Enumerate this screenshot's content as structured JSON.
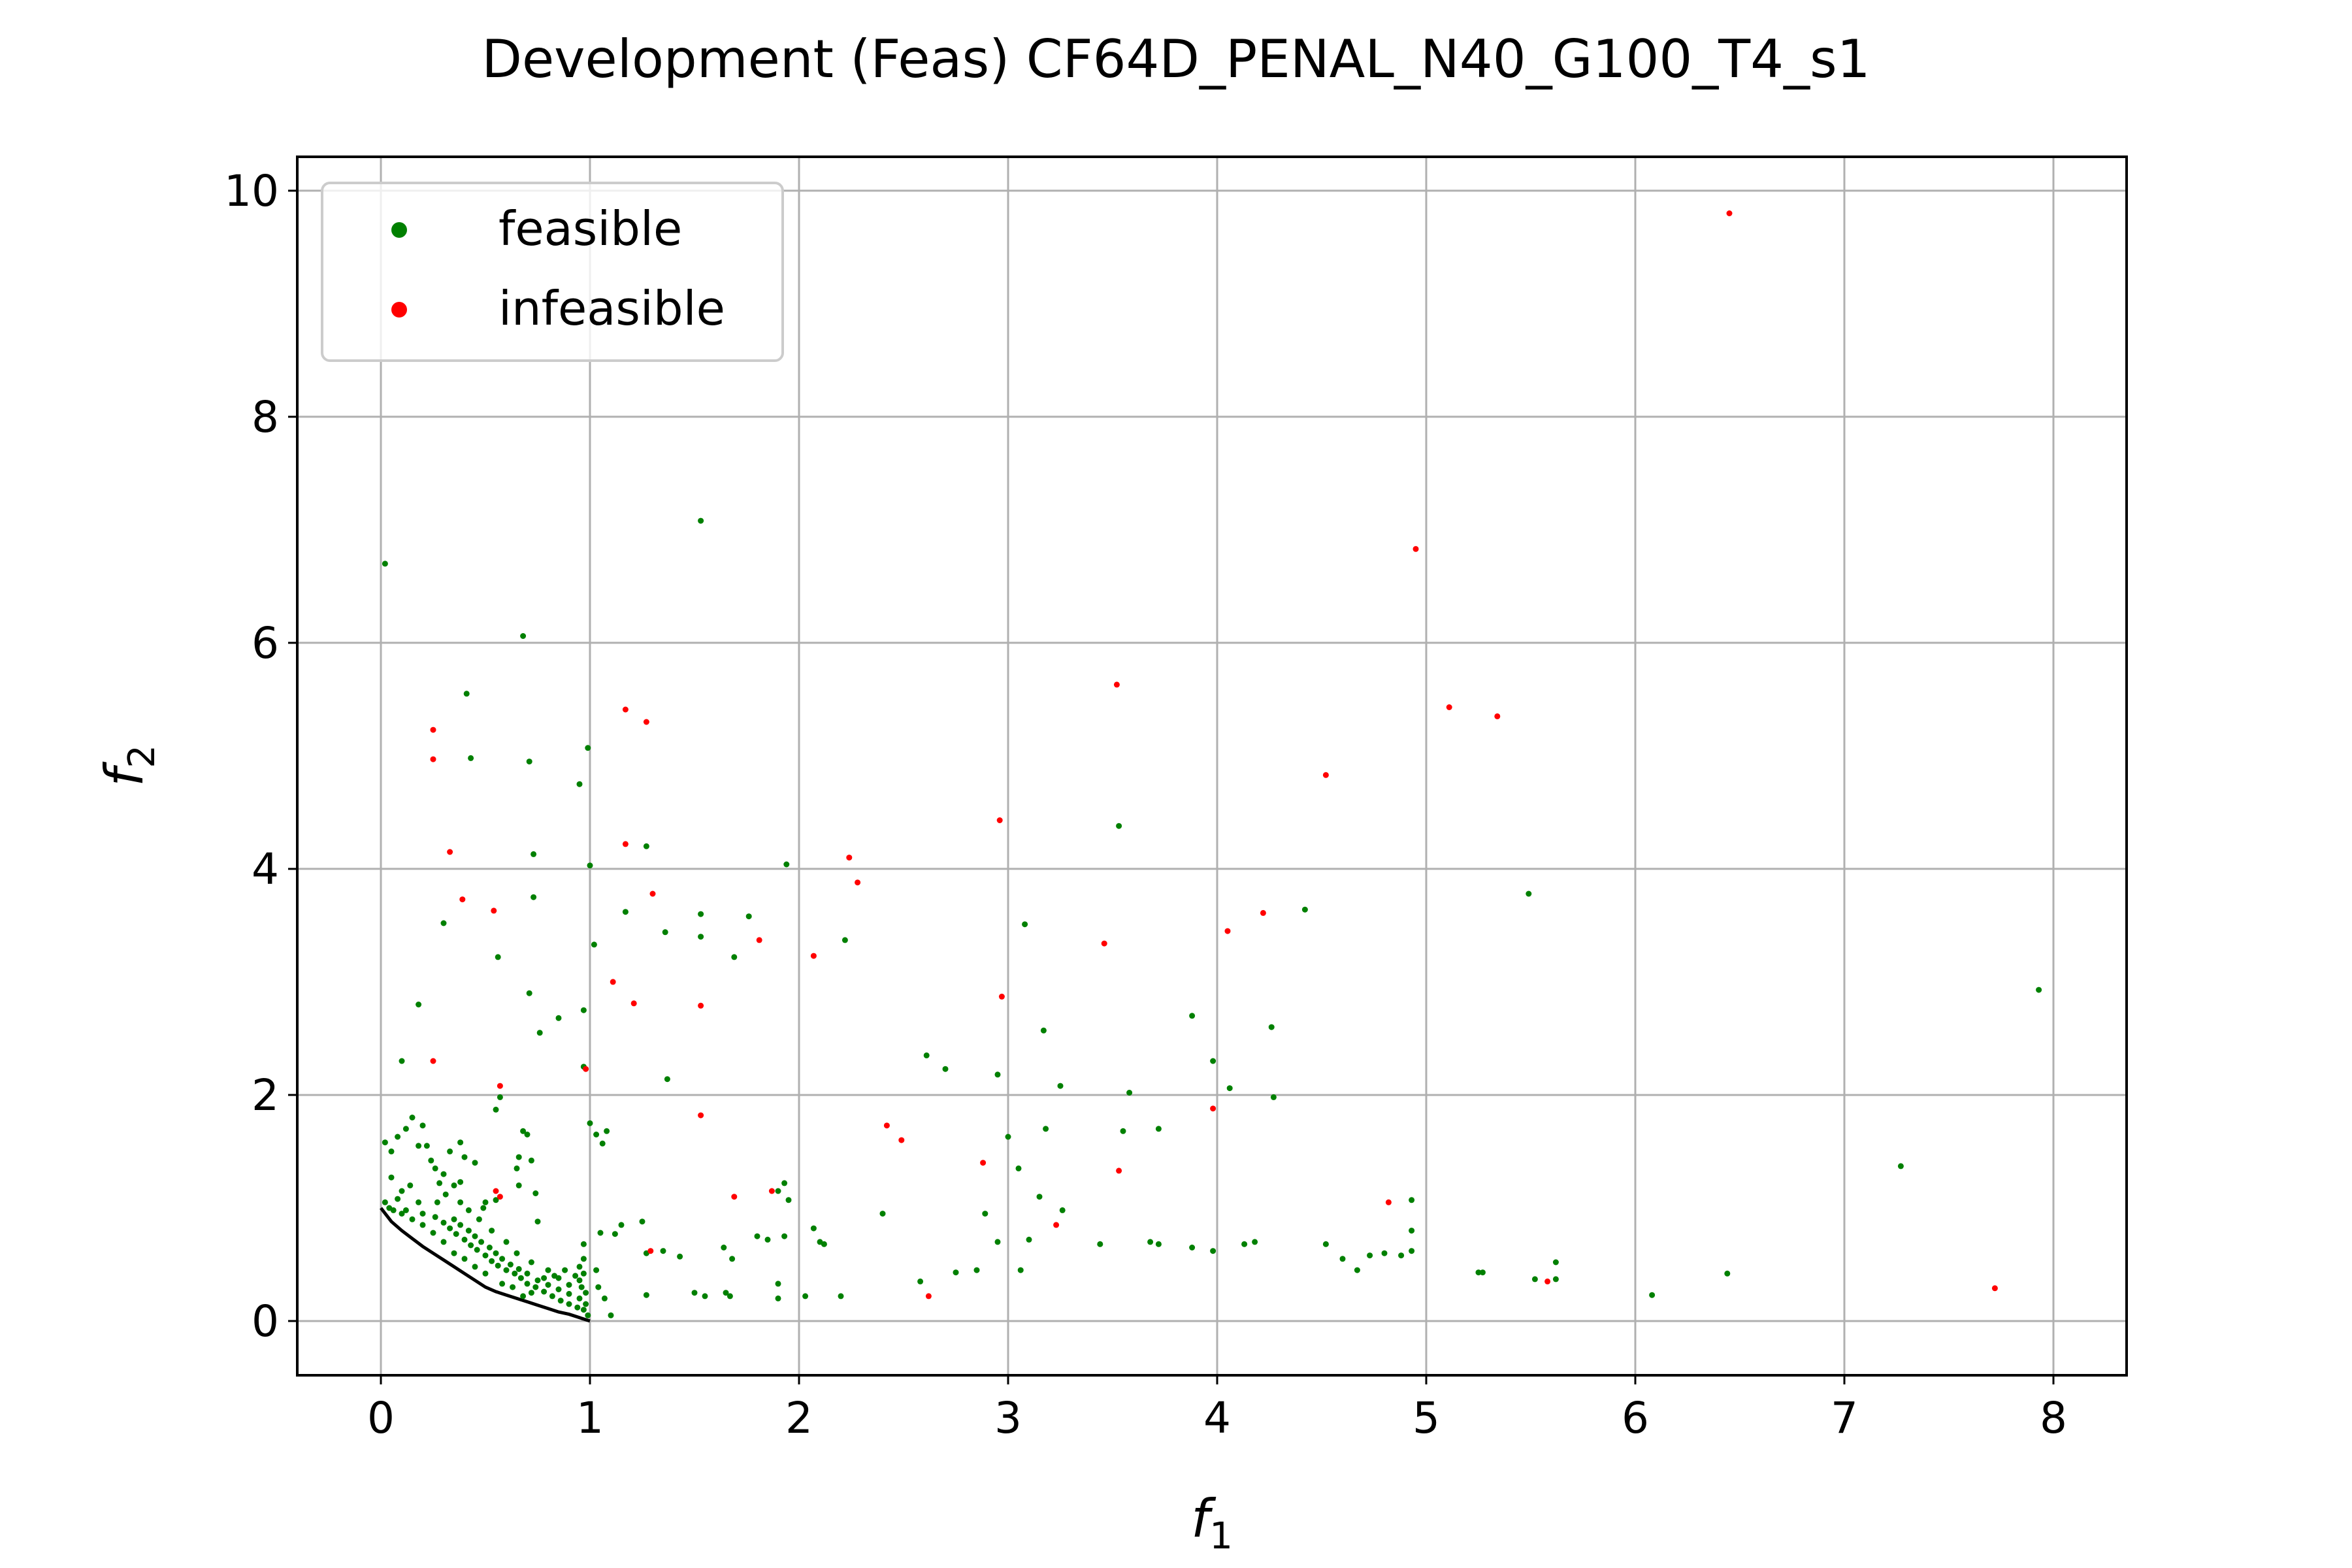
{
  "chart_data": {
    "type": "scatter",
    "title": "Development (Feas) CF64D_PENAL_N40_G100_T4_s1",
    "xlabel": {
      "base": "f",
      "sub": "1"
    },
    "ylabel": {
      "base": "f",
      "sub": "2"
    },
    "xlim": [
      -0.4,
      8.35
    ],
    "ylim": [
      -0.48,
      10.3
    ],
    "xticks": [
      0,
      1,
      2,
      3,
      4,
      5,
      6,
      7,
      8
    ],
    "yticks": [
      0,
      2,
      4,
      6,
      8,
      10
    ],
    "xtick_labels": [
      "0",
      "1",
      "2",
      "3",
      "4",
      "5",
      "6",
      "7",
      "8"
    ],
    "ytick_labels": [
      "0",
      "2",
      "4",
      "6",
      "8",
      "10"
    ],
    "grid": true,
    "legend": {
      "location": "upper-left",
      "entries": [
        {
          "label": "feasible",
          "color": "#008000"
        },
        {
          "label": "infeasible",
          "color": "#ff0000"
        }
      ]
    },
    "front_line": {
      "color": "#000000",
      "x": [
        0.0,
        0.05,
        0.1,
        0.15,
        0.2,
        0.25,
        0.3,
        0.35,
        0.4,
        0.45,
        0.5,
        0.55,
        0.6,
        0.65,
        0.7,
        0.75,
        0.8,
        0.85,
        0.9,
        0.95,
        1.0
      ],
      "y": [
        1.0,
        0.88,
        0.8,
        0.73,
        0.66,
        0.6,
        0.54,
        0.48,
        0.42,
        0.36,
        0.3,
        0.26,
        0.23,
        0.2,
        0.17,
        0.14,
        0.11,
        0.08,
        0.06,
        0.03,
        0.0
      ]
    },
    "series": [
      {
        "name": "feasible",
        "color": "#008000",
        "points": [
          [
            0.02,
            6.7
          ],
          [
            1.53,
            7.08
          ],
          [
            0.68,
            6.06
          ],
          [
            0.41,
            5.55
          ],
          [
            0.43,
            4.98
          ],
          [
            0.71,
            4.95
          ],
          [
            0.95,
            4.75
          ],
          [
            0.99,
            5.07
          ],
          [
            0.73,
            4.13
          ],
          [
            1.0,
            4.03
          ],
          [
            0.3,
            3.52
          ],
          [
            0.56,
            3.22
          ],
          [
            0.73,
            3.75
          ],
          [
            1.02,
            3.33
          ],
          [
            1.17,
            3.62
          ],
          [
            1.27,
            4.2
          ],
          [
            1.36,
            3.44
          ],
          [
            1.53,
            3.6
          ],
          [
            1.53,
            3.4
          ],
          [
            1.69,
            3.22
          ],
          [
            1.76,
            3.58
          ],
          [
            1.94,
            4.04
          ],
          [
            2.22,
            3.37
          ],
          [
            3.08,
            3.51
          ],
          [
            3.53,
            4.38
          ],
          [
            4.42,
            3.64
          ],
          [
            5.49,
            3.78
          ],
          [
            7.93,
            2.93
          ],
          [
            0.18,
            2.8
          ],
          [
            0.71,
            2.9
          ],
          [
            0.76,
            2.55
          ],
          [
            0.85,
            2.68
          ],
          [
            0.97,
            2.75
          ],
          [
            0.1,
            2.3
          ],
          [
            0.97,
            2.25
          ],
          [
            1.37,
            2.14
          ],
          [
            2.61,
            2.35
          ],
          [
            2.7,
            2.23
          ],
          [
            2.95,
            2.18
          ],
          [
            3.17,
            2.57
          ],
          [
            3.25,
            2.08
          ],
          [
            3.58,
            2.02
          ],
          [
            3.88,
            2.7
          ],
          [
            3.98,
            2.3
          ],
          [
            4.06,
            2.06
          ],
          [
            4.26,
            2.6
          ],
          [
            4.27,
            1.98
          ],
          [
            3.0,
            1.63
          ],
          [
            3.18,
            1.7
          ],
          [
            3.55,
            1.68
          ],
          [
            3.72,
            1.7
          ],
          [
            3.05,
            1.35
          ],
          [
            3.15,
            1.1
          ],
          [
            3.26,
            0.98
          ],
          [
            2.89,
            0.95
          ],
          [
            2.95,
            0.7
          ],
          [
            3.1,
            0.72
          ],
          [
            3.06,
            0.45
          ],
          [
            2.85,
            0.45
          ],
          [
            2.75,
            0.43
          ],
          [
            2.58,
            0.35
          ],
          [
            3.44,
            0.68
          ],
          [
            3.68,
            0.7
          ],
          [
            3.72,
            0.68
          ],
          [
            3.88,
            0.65
          ],
          [
            3.98,
            0.62
          ],
          [
            4.13,
            0.68
          ],
          [
            4.18,
            0.7
          ],
          [
            4.52,
            0.68
          ],
          [
            4.6,
            0.55
          ],
          [
            4.67,
            0.45
          ],
          [
            4.73,
            0.58
          ],
          [
            4.8,
            0.6
          ],
          [
            4.88,
            0.58
          ],
          [
            4.93,
            0.62
          ],
          [
            4.93,
            0.8
          ],
          [
            4.93,
            1.07
          ],
          [
            5.25,
            0.43
          ],
          [
            5.27,
            0.43
          ],
          [
            5.52,
            0.37
          ],
          [
            5.62,
            0.37
          ],
          [
            5.62,
            0.52
          ],
          [
            6.08,
            0.23
          ],
          [
            6.44,
            0.42
          ],
          [
            7.27,
            1.37
          ],
          [
            2.4,
            0.95
          ],
          [
            2.07,
            0.82
          ],
          [
            2.1,
            0.7
          ],
          [
            2.12,
            0.68
          ],
          [
            2.03,
            0.22
          ],
          [
            2.2,
            0.22
          ],
          [
            1.9,
            0.2
          ],
          [
            1.9,
            0.33
          ],
          [
            1.93,
            1.22
          ],
          [
            1.9,
            1.15
          ],
          [
            1.95,
            1.07
          ],
          [
            1.8,
            0.75
          ],
          [
            1.93,
            0.75
          ],
          [
            1.85,
            0.72
          ],
          [
            1.64,
            0.65
          ],
          [
            1.68,
            0.55
          ],
          [
            1.65,
            0.25
          ],
          [
            1.67,
            0.22
          ],
          [
            1.5,
            0.25
          ],
          [
            1.55,
            0.22
          ],
          [
            1.43,
            0.57
          ],
          [
            1.35,
            0.62
          ],
          [
            1.27,
            0.6
          ],
          [
            1.27,
            0.23
          ],
          [
            1.03,
            1.65
          ],
          [
            1.06,
            1.57
          ],
          [
            1.08,
            1.68
          ],
          [
            1.0,
            1.75
          ],
          [
            1.05,
            0.78
          ],
          [
            1.15,
            0.85
          ],
          [
            1.12,
            0.77
          ],
          [
            1.25,
            0.88
          ],
          [
            1.03,
            0.45
          ],
          [
            1.04,
            0.3
          ],
          [
            1.1,
            0.05
          ],
          [
            1.07,
            0.2
          ],
          [
            0.55,
            1.87
          ],
          [
            0.57,
            1.98
          ],
          [
            0.68,
            1.68
          ],
          [
            0.7,
            1.65
          ],
          [
            0.66,
            1.45
          ],
          [
            0.65,
            1.35
          ],
          [
            0.72,
            1.42
          ],
          [
            0.66,
            1.2
          ],
          [
            0.74,
            1.13
          ],
          [
            0.75,
            0.88
          ],
          [
            0.45,
            1.4
          ],
          [
            0.4,
            1.45
          ],
          [
            0.49,
            1.0
          ],
          [
            0.5,
            1.05
          ],
          [
            0.55,
            1.07
          ],
          [
            0.38,
            1.23
          ],
          [
            0.35,
            1.2
          ],
          [
            0.33,
            1.5
          ],
          [
            0.15,
            1.8
          ],
          [
            0.2,
            1.73
          ],
          [
            0.12,
            1.7
          ],
          [
            0.08,
            1.63
          ],
          [
            0.05,
            1.5
          ],
          [
            0.02,
            1.58
          ],
          [
            0.22,
            1.55
          ],
          [
            0.26,
            1.35
          ],
          [
            0.14,
            1.2
          ],
          [
            0.1,
            1.15
          ],
          [
            0.18,
            1.05
          ],
          [
            0.05,
            1.27
          ],
          [
            0.08,
            1.08
          ],
          [
            0.04,
            1.0
          ],
          [
            0.02,
            1.05
          ],
          [
            0.27,
            1.05
          ],
          [
            0.12,
            0.98
          ],
          [
            0.2,
            0.95
          ],
          [
            0.26,
            0.92
          ],
          [
            0.3,
            0.87
          ],
          [
            0.33,
            0.82
          ],
          [
            0.36,
            0.77
          ],
          [
            0.4,
            0.72
          ],
          [
            0.43,
            0.67
          ],
          [
            0.46,
            0.63
          ],
          [
            0.5,
            0.58
          ],
          [
            0.53,
            0.53
          ],
          [
            0.56,
            0.49
          ],
          [
            0.6,
            0.45
          ],
          [
            0.64,
            0.42
          ],
          [
            0.67,
            0.38
          ],
          [
            0.7,
            0.33
          ],
          [
            0.74,
            0.3
          ],
          [
            0.78,
            0.26
          ],
          [
            0.82,
            0.22
          ],
          [
            0.86,
            0.18
          ],
          [
            0.9,
            0.15
          ],
          [
            0.94,
            0.12
          ],
          [
            0.97,
            0.1
          ],
          [
            0.35,
            0.9
          ],
          [
            0.38,
            0.85
          ],
          [
            0.42,
            0.8
          ],
          [
            0.45,
            0.75
          ],
          [
            0.48,
            0.7
          ],
          [
            0.52,
            0.65
          ],
          [
            0.55,
            0.6
          ],
          [
            0.58,
            0.55
          ],
          [
            0.62,
            0.5
          ],
          [
            0.66,
            0.46
          ],
          [
            0.7,
            0.42
          ],
          [
            0.75,
            0.36
          ],
          [
            0.8,
            0.32
          ],
          [
            0.85,
            0.28
          ],
          [
            0.9,
            0.24
          ],
          [
            0.95,
            0.2
          ],
          [
            0.96,
            0.3
          ],
          [
            0.97,
            0.42
          ],
          [
            0.97,
            0.55
          ],
          [
            0.97,
            0.68
          ],
          [
            0.95,
            0.48
          ],
          [
            0.95,
            0.36
          ],
          [
            0.98,
            0.25
          ],
          [
            0.98,
            0.15
          ],
          [
            0.99,
            0.05
          ],
          [
            0.93,
            0.4
          ],
          [
            0.88,
            0.45
          ],
          [
            0.83,
            0.4
          ],
          [
            0.78,
            0.38
          ],
          [
            0.72,
            0.25
          ],
          [
            0.68,
            0.22
          ],
          [
            0.63,
            0.3
          ],
          [
            0.58,
            0.33
          ],
          [
            0.5,
            0.42
          ],
          [
            0.45,
            0.48
          ],
          [
            0.4,
            0.55
          ],
          [
            0.35,
            0.6
          ],
          [
            0.3,
            0.7
          ],
          [
            0.25,
            0.78
          ],
          [
            0.2,
            0.85
          ],
          [
            0.15,
            0.9
          ],
          [
            0.1,
            0.95
          ],
          [
            0.06,
            0.98
          ],
          [
            0.31,
            1.12
          ],
          [
            0.28,
            1.22
          ],
          [
            0.38,
            1.05
          ],
          [
            0.42,
            0.98
          ],
          [
            0.47,
            0.9
          ],
          [
            0.53,
            0.8
          ],
          [
            0.6,
            0.7
          ],
          [
            0.65,
            0.6
          ],
          [
            0.72,
            0.52
          ],
          [
            0.8,
            0.45
          ],
          [
            0.85,
            0.38
          ],
          [
            0.9,
            0.32
          ],
          [
            0.24,
            1.42
          ],
          [
            0.18,
            1.55
          ],
          [
            0.3,
            1.3
          ],
          [
            0.38,
            1.58
          ]
        ]
      },
      {
        "name": "infeasible",
        "color": "#ff0000",
        "points": [
          [
            6.45,
            9.8
          ],
          [
            4.95,
            6.83
          ],
          [
            3.52,
            5.63
          ],
          [
            5.11,
            5.43
          ],
          [
            5.34,
            5.35
          ],
          [
            4.52,
            4.83
          ],
          [
            1.17,
            5.41
          ],
          [
            1.27,
            5.3
          ],
          [
            0.25,
            5.23
          ],
          [
            0.25,
            4.97
          ],
          [
            2.96,
            4.43
          ],
          [
            0.33,
            4.15
          ],
          [
            1.17,
            4.22
          ],
          [
            2.24,
            4.1
          ],
          [
            2.28,
            3.88
          ],
          [
            1.3,
            3.78
          ],
          [
            0.39,
            3.73
          ],
          [
            0.54,
            3.63
          ],
          [
            1.81,
            3.37
          ],
          [
            2.07,
            3.23
          ],
          [
            3.46,
            3.34
          ],
          [
            4.05,
            3.45
          ],
          [
            4.22,
            3.61
          ],
          [
            1.11,
            3.0
          ],
          [
            1.21,
            2.81
          ],
          [
            1.53,
            2.79
          ],
          [
            2.97,
            2.87
          ],
          [
            0.25,
            2.3
          ],
          [
            0.57,
            2.08
          ],
          [
            0.98,
            2.23
          ],
          [
            1.53,
            1.82
          ],
          [
            2.42,
            1.73
          ],
          [
            2.49,
            1.6
          ],
          [
            3.98,
            1.88
          ],
          [
            2.88,
            1.4
          ],
          [
            3.53,
            1.33
          ],
          [
            1.69,
            1.1
          ],
          [
            1.87,
            1.15
          ],
          [
            4.82,
            1.05
          ],
          [
            3.23,
            0.85
          ],
          [
            1.29,
            0.62
          ],
          [
            0.55,
            1.15
          ],
          [
            0.57,
            1.1
          ],
          [
            2.62,
            0.22
          ],
          [
            5.58,
            0.35
          ],
          [
            7.72,
            0.29
          ]
        ]
      }
    ]
  }
}
